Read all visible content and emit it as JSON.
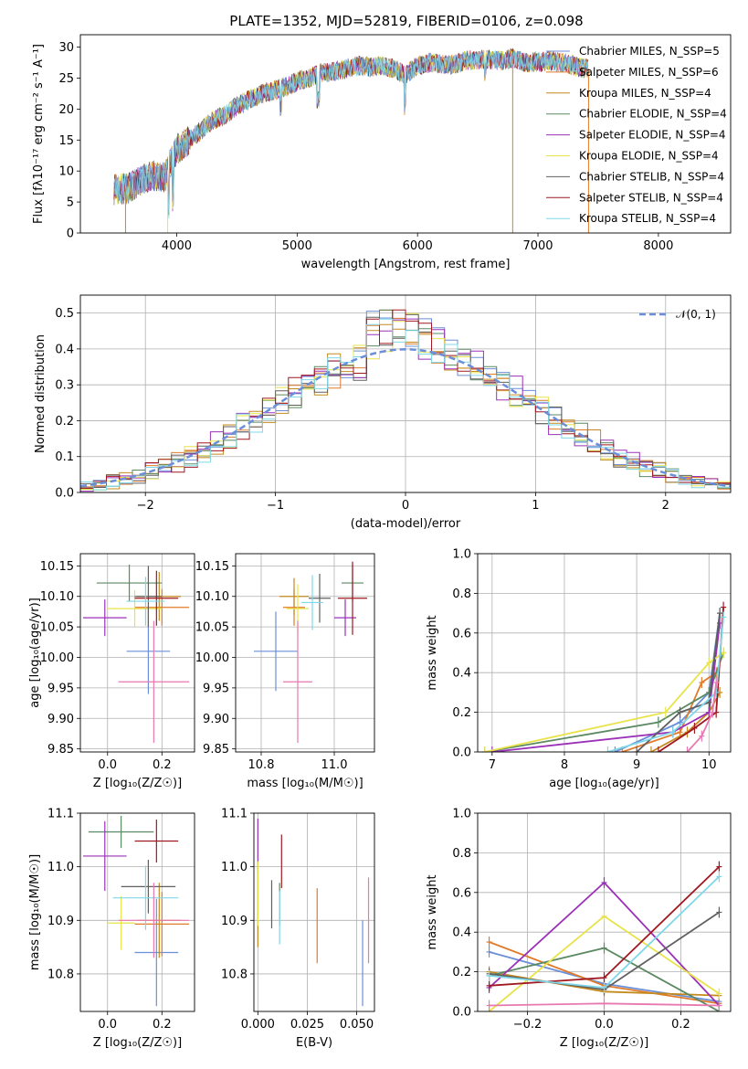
{
  "figure": {
    "title": "PLATE=1352, MJD=52819, FIBERID=0106, z=0.098"
  },
  "colors": {
    "series": [
      "#6a8fd8",
      "#e07b2a",
      "#c58a1e",
      "#5b8a62",
      "#9b30b8",
      "#e8e34a",
      "#606060",
      "#a01820",
      "#7fd8e8"
    ],
    "pink": "#e879b0",
    "grid": "#b0b0b0",
    "normal_curve": "#6a8fd8"
  },
  "chart_data": [
    {
      "id": "spectrum",
      "type": "line",
      "xlabel": "wavelength [Angstrom, rest frame]",
      "ylabel": "Flux [fλ10⁻¹⁷ erg cm⁻² s⁻¹ A⁻¹]",
      "xlim": [
        3200,
        8600
      ],
      "ylim": [
        0,
        32
      ],
      "xticks": [
        4000,
        5000,
        6000,
        7000,
        8000
      ],
      "yticks": [
        0,
        5,
        10,
        15,
        20,
        25,
        30
      ],
      "grid": false,
      "legend_position": "top-right",
      "x": [
        3480,
        3600,
        3700,
        3800,
        3900,
        4000,
        4100,
        4200,
        4300,
        4400,
        4500,
        4600,
        4700,
        4800,
        4900,
        5000,
        5100,
        5200,
        5300,
        5400,
        5500,
        5600,
        5700,
        5800,
        5900,
        6000,
        6100,
        6200,
        6300,
        6400,
        6500,
        6600,
        6700,
        6800,
        6900,
        7000,
        7100,
        7200,
        7300,
        7400
      ],
      "continuum": [
        7,
        7.2,
        8.5,
        9.3,
        9,
        13.5,
        15,
        16.5,
        18.2,
        19,
        20.5,
        21.5,
        22.5,
        23,
        23.5,
        24.5,
        25,
        25.8,
        26,
        26.5,
        27,
        26.8,
        27,
        26.5,
        25.5,
        27,
        27.5,
        27.2,
        27.2,
        27.8,
        28,
        28,
        27.8,
        28.2,
        27.5,
        27.6,
        27.8,
        27.5,
        27,
        26.5
      ],
      "series": [
        {
          "name": "Chabrier MILES, N_SSP=5"
        },
        {
          "name": "Salpeter MILES, N_SSP=6"
        },
        {
          "name": "Kroupa MILES, N_SSP=4"
        },
        {
          "name": "Chabrier ELODIE, N_SSP=4"
        },
        {
          "name": "Salpeter ELODIE, N_SSP=4"
        },
        {
          "name": "Kroupa ELODIE, N_SSP=4"
        },
        {
          "name": "Chabrier STELIB, N_SSP=4"
        },
        {
          "name": "Salpeter STELIB, N_SSP=4"
        },
        {
          "name": "Kroupa STELIB, N_SSP=4"
        }
      ]
    },
    {
      "id": "residuals",
      "type": "area",
      "xlabel": "(data-model)/error",
      "ylabel": "Normed distribution",
      "xlim": [
        -2.5,
        2.5
      ],
      "ylim": [
        0,
        0.55
      ],
      "xticks": [
        -2,
        -1,
        0,
        1,
        2
      ],
      "yticks": [
        0.0,
        0.1,
        0.2,
        0.3,
        0.4,
        0.5
      ],
      "grid": true,
      "legend_position": "top-right",
      "legend_label": "𝒩(0, 1)",
      "bin_centers": [
        -2.45,
        -2.35,
        -2.25,
        -2.15,
        -2.05,
        -1.95,
        -1.85,
        -1.75,
        -1.65,
        -1.55,
        -1.45,
        -1.35,
        -1.25,
        -1.15,
        -1.05,
        -0.95,
        -0.85,
        -0.75,
        -0.65,
        -0.55,
        -0.45,
        -0.35,
        -0.25,
        -0.15,
        -0.05,
        0.05,
        0.15,
        0.25,
        0.35,
        0.45,
        0.55,
        0.65,
        0.75,
        0.85,
        0.95,
        1.05,
        1.15,
        1.25,
        1.35,
        1.45,
        1.55,
        1.65,
        1.75,
        1.85,
        1.95,
        2.05,
        2.15,
        2.25,
        2.35,
        2.45
      ],
      "hist_center": [
        0.015,
        0.02,
        0.03,
        0.035,
        0.045,
        0.06,
        0.07,
        0.085,
        0.1,
        0.115,
        0.14,
        0.16,
        0.185,
        0.2,
        0.23,
        0.26,
        0.28,
        0.3,
        0.32,
        0.34,
        0.36,
        0.37,
        0.44,
        0.45,
        0.46,
        0.45,
        0.43,
        0.41,
        0.39,
        0.37,
        0.35,
        0.33,
        0.3,
        0.28,
        0.25,
        0.23,
        0.2,
        0.18,
        0.16,
        0.14,
        0.12,
        0.1,
        0.085,
        0.07,
        0.06,
        0.05,
        0.04,
        0.03,
        0.025,
        0.02
      ],
      "hist_spread": [
        0.015,
        0.015,
        0.02,
        0.02,
        0.02,
        0.025,
        0.03,
        0.03,
        0.03,
        0.035,
        0.035,
        0.04,
        0.04,
        0.04,
        0.045,
        0.045,
        0.045,
        0.05,
        0.05,
        0.05,
        0.055,
        0.06,
        0.07,
        0.06,
        0.05,
        0.05,
        0.06,
        0.06,
        0.05,
        0.05,
        0.045,
        0.045,
        0.045,
        0.045,
        0.04,
        0.04,
        0.04,
        0.04,
        0.035,
        0.035,
        0.035,
        0.03,
        0.03,
        0.03,
        0.025,
        0.025,
        0.02,
        0.02,
        0.015,
        0.015
      ]
    },
    {
      "id": "age_vs_Z",
      "type": "scatter",
      "xlabel": "Z [log₁₀(Z/Z☉)]",
      "ylabel": "age  [log₁₀(age/yr)]",
      "xlim": [
        -0.1,
        0.32
      ],
      "ylim": [
        9.845,
        10.17
      ],
      "xticks": [
        0.0,
        0.2
      ],
      "yticks": [
        9.85,
        9.9,
        9.95,
        10.0,
        10.05,
        10.1,
        10.15
      ],
      "grid": true,
      "points": [
        {
          "x": 0.15,
          "y": 10.01,
          "xerr": 0.08,
          "yerr": 0.07
        },
        {
          "x": 0.2,
          "y": 10.082,
          "xerr": 0.1,
          "yerr": 0.03
        },
        {
          "x": 0.19,
          "y": 10.1,
          "xerr": 0.08,
          "yerr": 0.04
        },
        {
          "x": 0.08,
          "y": 10.122,
          "xerr": 0.12,
          "yerr": 0.03
        },
        {
          "x": -0.01,
          "y": 10.065,
          "xerr": 0.08,
          "yerr": 0.03
        },
        {
          "x": 0.1,
          "y": 10.08,
          "xerr": 0.1,
          "yerr": 0.03
        },
        {
          "x": 0.15,
          "y": 10.1,
          "xerr": 0.05,
          "yerr": 0.05
        },
        {
          "x": 0.18,
          "y": 10.097,
          "xerr": 0.08,
          "yerr": 0.045
        },
        {
          "x": 0.14,
          "y": 10.092,
          "xerr": 0.07,
          "yerr": 0.04
        },
        {
          "x": 0.17,
          "y": 9.96,
          "xerr": 0.13,
          "yerr": 0.1
        }
      ]
    },
    {
      "id": "age_vs_mass",
      "type": "scatter",
      "xlabel": "mass [log₁₀(M/M☉)]",
      "ylabel": "",
      "xlim": [
        10.73,
        11.11
      ],
      "ylim": [
        9.845,
        10.17
      ],
      "xticks": [
        10.8,
        11.0
      ],
      "yticks": [
        9.85,
        9.9,
        9.95,
        10.0,
        10.05,
        10.1,
        10.15
      ],
      "grid": true,
      "points": [
        {
          "x": 10.84,
          "y": 10.01,
          "xerr": 0.06,
          "yerr": 0.065
        },
        {
          "x": 10.89,
          "y": 10.082,
          "xerr": 0.03,
          "yerr": 0.03
        },
        {
          "x": 10.89,
          "y": 10.1,
          "xerr": 0.04,
          "yerr": 0.03
        },
        {
          "x": 11.05,
          "y": 10.122,
          "xerr": 0.03,
          "yerr": 0.03
        },
        {
          "x": 11.03,
          "y": 10.065,
          "xerr": 0.03,
          "yerr": 0.03
        },
        {
          "x": 10.9,
          "y": 10.08,
          "xerr": 0.03,
          "yerr": 0.04
        },
        {
          "x": 10.96,
          "y": 10.097,
          "xerr": 0.03,
          "yerr": 0.04
        },
        {
          "x": 11.05,
          "y": 10.097,
          "xerr": 0.04,
          "yerr": 0.06
        },
        {
          "x": 10.94,
          "y": 10.09,
          "xerr": 0.03,
          "yerr": 0.045
        },
        {
          "x": 10.9,
          "y": 9.96,
          "xerr": 0.04,
          "yerr": 0.1
        }
      ]
    },
    {
      "id": "mass_weight_vs_age",
      "type": "line",
      "xlabel": "age  [log₁₀(age/yr)]",
      "ylabel": "mass weight",
      "xlim": [
        6.8,
        10.3
      ],
      "ylim": [
        0,
        1
      ],
      "xticks": [
        7,
        8,
        9,
        10
      ],
      "yticks": [
        0.0,
        0.2,
        0.4,
        0.6,
        0.8,
        1.0
      ],
      "grid": true,
      "lines": [
        {
          "x": [
            8.7,
            9.6,
            10.0,
            10.15
          ],
          "y": [
            0,
            0.15,
            0.3,
            0.7
          ]
        },
        {
          "x": [
            8.8,
            9.6,
            9.9,
            10.1
          ],
          "y": [
            0,
            0.1,
            0.35,
            0.4
          ]
        },
        {
          "x": [
            9.2,
            9.7,
            10.0,
            10.15
          ],
          "y": [
            0,
            0.1,
            0.2,
            0.3
          ]
        },
        {
          "x": [
            6.9,
            9.3,
            10.0,
            10.2
          ],
          "y": [
            0,
            0.15,
            0.3,
            0.5
          ]
        },
        {
          "x": [
            7.0,
            9.5,
            10.0,
            10.15
          ],
          "y": [
            0,
            0.1,
            0.2,
            0.65
          ]
        },
        {
          "x": [
            6.9,
            9.4,
            10.0,
            10.2
          ],
          "y": [
            0,
            0.2,
            0.45,
            0.5
          ]
        },
        {
          "x": [
            9.0,
            9.6,
            10.0,
            10.15
          ],
          "y": [
            0,
            0.2,
            0.25,
            0.7
          ]
        },
        {
          "x": [
            9.3,
            9.8,
            10.1,
            10.2
          ],
          "y": [
            0,
            0.12,
            0.2,
            0.73
          ]
        },
        {
          "x": [
            8.6,
            9.5,
            10.1,
            10.2
          ],
          "y": [
            0,
            0.1,
            0.3,
            0.68
          ]
        },
        {
          "x": [
            9.7,
            9.9,
            10.05,
            10.1
          ],
          "y": [
            0,
            0.08,
            0.2,
            0.35
          ]
        }
      ]
    },
    {
      "id": "mass_vs_Z",
      "type": "scatter",
      "xlabel": "Z [log₁₀(Z/Z☉)]",
      "ylabel": "mass [log₁₀(M/M☉)]",
      "xlim": [
        -0.1,
        0.32
      ],
      "ylim": [
        10.73,
        11.1
      ],
      "xticks": [
        0.0,
        0.2
      ],
      "yticks": [
        10.8,
        10.9,
        11.0,
        11.1
      ],
      "grid": true,
      "points": [
        {
          "x": 0.18,
          "y": 10.84,
          "xerr": 0.08,
          "yerr": 0.1
        },
        {
          "x": 0.2,
          "y": 10.893,
          "xerr": 0.1,
          "yerr": 0.06
        },
        {
          "x": 0.19,
          "y": 10.9,
          "xerr": 0.08,
          "yerr": 0.07
        },
        {
          "x": 0.05,
          "y": 11.065,
          "xerr": 0.12,
          "yerr": 0.03
        },
        {
          "x": -0.01,
          "y": 11.02,
          "xerr": 0.08,
          "yerr": 0.065
        },
        {
          "x": 0.05,
          "y": 10.895,
          "xerr": 0.05,
          "yerr": 0.05
        },
        {
          "x": 0.15,
          "y": 10.963,
          "xerr": 0.1,
          "yerr": 0.05
        },
        {
          "x": 0.18,
          "y": 11.048,
          "xerr": 0.08,
          "yerr": 0.04
        },
        {
          "x": 0.14,
          "y": 10.942,
          "xerr": 0.12,
          "yerr": 0.06
        },
        {
          "x": 0.17,
          "y": 10.9,
          "xerr": 0.13,
          "yerr": 0.07
        }
      ]
    },
    {
      "id": "mass_vs_EBV",
      "type": "scatter",
      "xlabel": "E(B-V)",
      "ylabel": "",
      "xlim": [
        -0.002,
        0.059
      ],
      "ylim": [
        10.73,
        11.1
      ],
      "xticks": [
        0.0,
        0.025,
        0.05
      ],
      "yticks": [
        10.8,
        10.9,
        11.0,
        11.1
      ],
      "grid": true,
      "points": [
        {
          "x": 0.053,
          "y": 10.82,
          "xerr": 0,
          "yerr": 0.08
        },
        {
          "x": 0.03,
          "y": 10.89,
          "xerr": 0,
          "yerr": 0.07
        },
        {
          "x": 0.0,
          "y": 10.92,
          "xerr": 0,
          "yerr": 0.07
        },
        {
          "x": 0.011,
          "y": 10.93,
          "xerr": 0,
          "yerr": 0.04
        },
        {
          "x": 0.0,
          "y": 11.04,
          "xerr": 0,
          "yerr": 0.05
        },
        {
          "x": 0.0,
          "y": 10.95,
          "xerr": 0,
          "yerr": 0.06
        },
        {
          "x": 0.007,
          "y": 10.93,
          "xerr": 0,
          "yerr": 0.045
        },
        {
          "x": 0.012,
          "y": 11.01,
          "xerr": 0,
          "yerr": 0.05
        },
        {
          "x": 0.011,
          "y": 10.905,
          "xerr": 0,
          "yerr": 0.05
        },
        {
          "x": 0.056,
          "y": 10.9,
          "xerr": 0,
          "yerr": 0.08
        }
      ]
    },
    {
      "id": "mass_weight_vs_Z",
      "type": "line",
      "xlabel": "Z [log₁₀(Z/Z☉)]",
      "ylabel": "mass weight",
      "xlim": [
        -0.33,
        0.33
      ],
      "ylim": [
        0,
        1
      ],
      "xticks": [
        -0.2,
        0.0,
        0.2
      ],
      "yticks": [
        0.0,
        0.2,
        0.4,
        0.6,
        0.8,
        1.0
      ],
      "grid": true,
      "lines": [
        {
          "x": [
            -0.3,
            0.0,
            0.3
          ],
          "y": [
            0.3,
            0.14,
            0.05
          ]
        },
        {
          "x": [
            -0.3,
            0.0,
            0.3
          ],
          "y": [
            0.35,
            0.13,
            0.04
          ]
        },
        {
          "x": [
            -0.3,
            0.0,
            0.3
          ],
          "y": [
            0.2,
            0.1,
            0.08
          ]
        },
        {
          "x": [
            -0.3,
            0.0,
            0.3
          ],
          "y": [
            0.18,
            0.32,
            0.0
          ]
        },
        {
          "x": [
            -0.3,
            0.0,
            0.3
          ],
          "y": [
            0.12,
            0.65,
            0.03
          ]
        },
        {
          "x": [
            -0.3,
            0.0,
            0.3
          ],
          "y": [
            0.0,
            0.48,
            0.09
          ]
        },
        {
          "x": [
            -0.3,
            0.0,
            0.3
          ],
          "y": [
            0.19,
            0.11,
            0.5
          ]
        },
        {
          "x": [
            -0.3,
            0.0,
            0.3
          ],
          "y": [
            0.13,
            0.17,
            0.73
          ]
        },
        {
          "x": [
            -0.3,
            0.0,
            0.3
          ],
          "y": [
            0.18,
            0.12,
            0.68
          ]
        },
        {
          "x": [
            -0.3,
            0.0,
            0.3
          ],
          "y": [
            0.03,
            0.04,
            0.03
          ]
        }
      ]
    }
  ]
}
